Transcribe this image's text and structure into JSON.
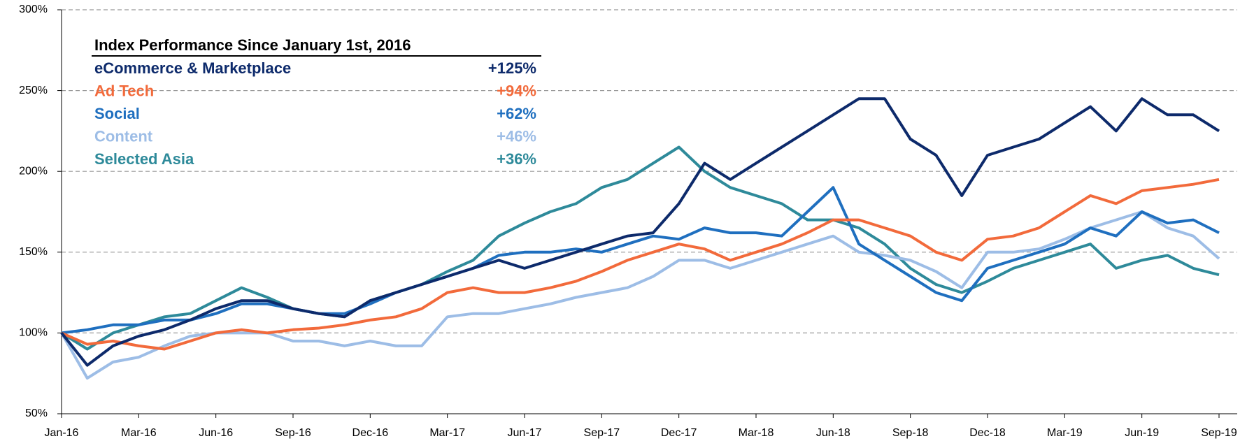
{
  "chart_data": {
    "type": "line",
    "legend_title": "Index Performance Since January 1st, 2016",
    "categories": [
      "Jan-16",
      null,
      null,
      "Mar-16",
      null,
      null,
      "Jun-16",
      null,
      null,
      "Sep-16",
      null,
      null,
      "Dec-16",
      null,
      null,
      "Mar-17",
      null,
      null,
      "Jun-17",
      null,
      null,
      "Sep-17",
      null,
      null,
      "Dec-17",
      null,
      null,
      "Mar-18",
      null,
      null,
      "Jun-18",
      null,
      null,
      "Sep-18",
      null,
      null,
      "Dec-18",
      null,
      null,
      "Mar-19",
      null,
      null,
      "Jun-19",
      null,
      null,
      "Sep-19"
    ],
    "ylim": [
      50,
      300
    ],
    "yticks": [
      {
        "value": 50,
        "label": "50%"
      },
      {
        "value": 100,
        "label": "100%"
      },
      {
        "value": 150,
        "label": "150%"
      },
      {
        "value": 200,
        "label": "200%"
      },
      {
        "value": 250,
        "label": "250%"
      },
      {
        "value": 300,
        "label": "300%"
      }
    ],
    "grid": true,
    "series": [
      {
        "name": "eCommerce & Marketplace",
        "color": "#0d2a6b",
        "change": 125,
        "change_label": "+125%",
        "values": [
          100,
          80,
          92,
          98,
          102,
          108,
          115,
          120,
          120,
          115,
          112,
          110,
          120,
          125,
          130,
          135,
          140,
          145,
          140,
          145,
          150,
          155,
          160,
          162,
          180,
          205,
          195,
          205,
          215,
          225,
          235,
          245,
          245,
          220,
          210,
          185,
          210,
          215,
          220,
          230,
          240,
          225,
          245,
          235,
          235,
          225
        ]
      },
      {
        "name": "Ad Tech",
        "color": "#f26a3b",
        "change": 94,
        "change_label": "+94%",
        "values": [
          100,
          93,
          95,
          92,
          90,
          95,
          100,
          102,
          100,
          102,
          103,
          105,
          108,
          110,
          115,
          125,
          128,
          125,
          125,
          128,
          132,
          138,
          145,
          150,
          155,
          152,
          145,
          150,
          155,
          162,
          170,
          170,
          165,
          160,
          150,
          145,
          158,
          160,
          165,
          175,
          185,
          180,
          188,
          190,
          192,
          195
        ]
      },
      {
        "name": "Social",
        "color": "#1f6fbf",
        "change": 62,
        "change_label": "+62%",
        "values": [
          100,
          102,
          105,
          105,
          108,
          108,
          112,
          118,
          118,
          115,
          112,
          112,
          118,
          125,
          130,
          135,
          140,
          148,
          150,
          150,
          152,
          150,
          155,
          160,
          158,
          165,
          162,
          162,
          160,
          175,
          190,
          155,
          145,
          135,
          125,
          120,
          140,
          145,
          150,
          155,
          165,
          160,
          175,
          168,
          170,
          162
        ]
      },
      {
        "name": "Content",
        "color": "#9dbde6",
        "change": 46,
        "change_label": "+46%",
        "values": [
          100,
          72,
          82,
          85,
          92,
          98,
          100,
          100,
          100,
          95,
          95,
          92,
          95,
          92,
          92,
          110,
          112,
          112,
          115,
          118,
          122,
          125,
          128,
          135,
          145,
          145,
          140,
          145,
          150,
          155,
          160,
          150,
          148,
          145,
          138,
          128,
          150,
          150,
          152,
          158,
          165,
          170,
          175,
          165,
          160,
          146
        ]
      },
      {
        "name": "Selected Asia",
        "color": "#2e8a9a",
        "change": 36,
        "change_label": "+36%",
        "values": [
          100,
          90,
          100,
          105,
          110,
          112,
          120,
          128,
          122,
          115,
          112,
          110,
          120,
          125,
          130,
          138,
          145,
          160,
          168,
          175,
          180,
          190,
          195,
          205,
          215,
          200,
          190,
          185,
          180,
          170,
          170,
          165,
          155,
          140,
          130,
          125,
          132,
          140,
          145,
          150,
          155,
          140,
          145,
          148,
          140,
          136
        ]
      }
    ]
  }
}
